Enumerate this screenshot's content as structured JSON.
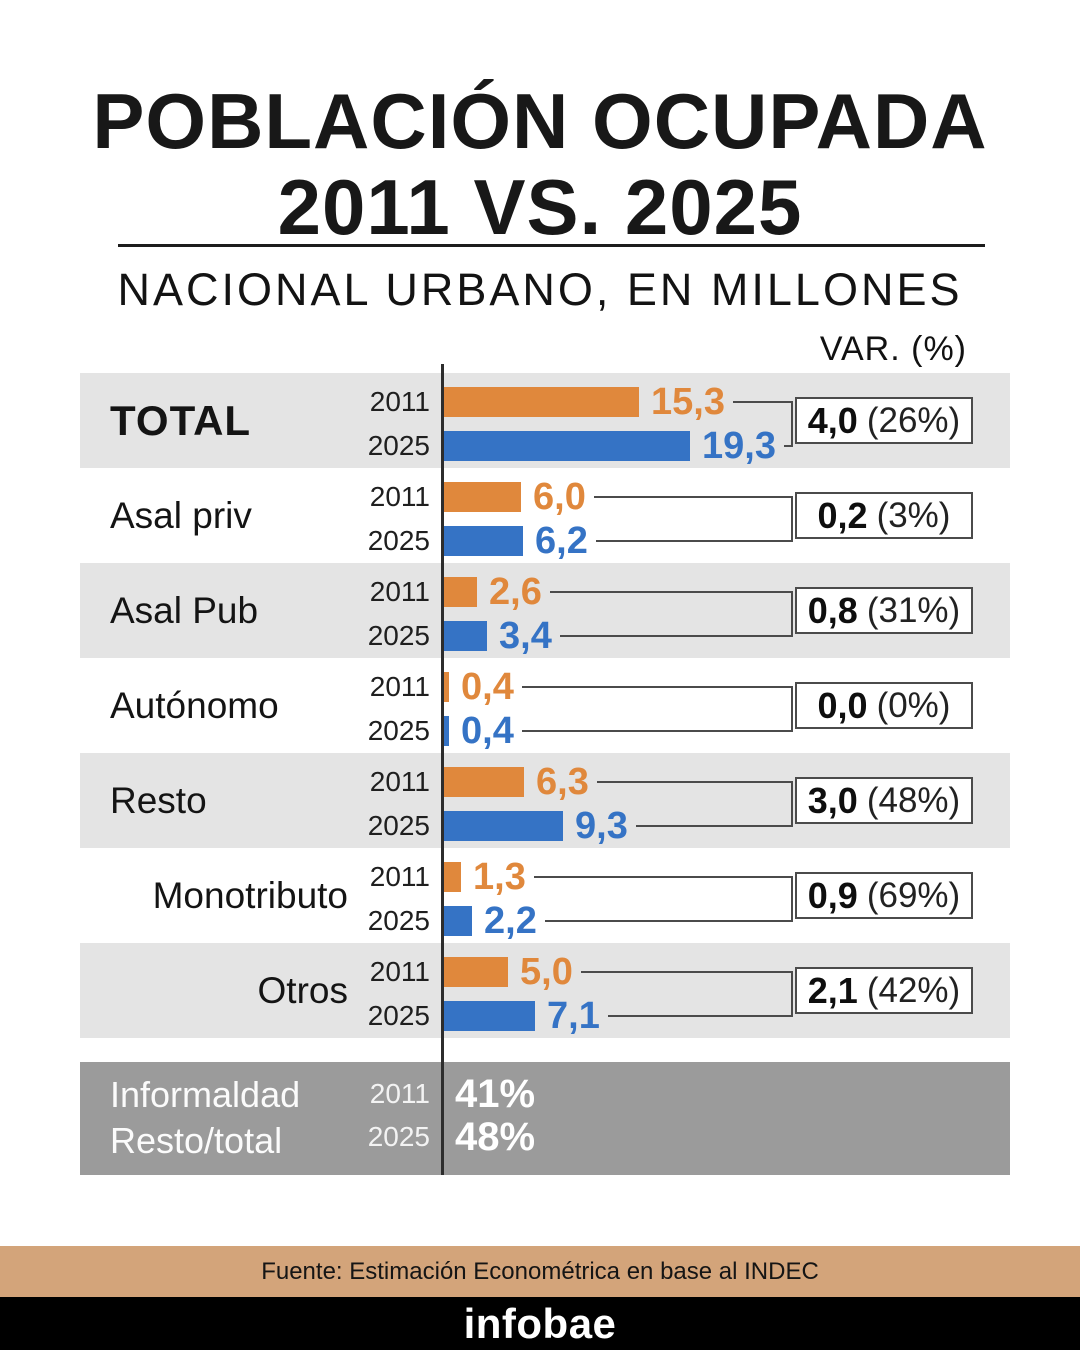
{
  "header": {
    "title_line1": "POBLACIÓN OCUPADA",
    "title_line2": "2011 VS. 2025",
    "subtitle": "NACIONAL URBANO, EN MILLONES",
    "var_header": "VAR. (%)"
  },
  "colors": {
    "year_2011": "#e0883c",
    "year_2025": "#3573c5",
    "row_shade": "#e4e4e4",
    "informality_band": "#9b9b9b",
    "source_band": "#d3a47a",
    "connector": "#4b4b4b"
  },
  "chart_data": {
    "type": "bar",
    "orientation": "horizontal",
    "title": "POBLACIÓN OCUPADA 2011 VS. 2025",
    "subtitle": "NACIONAL URBANO, EN MILLONES",
    "unit": "millones de personas",
    "years": [
      "2011",
      "2025"
    ],
    "xlim": [
      0,
      19.3
    ],
    "grid": false,
    "legend_position": "none",
    "rows": [
      {
        "label": "TOTAL",
        "shaded": true,
        "emphasis": true,
        "label_align": "left",
        "values": [
          15.3,
          19.3
        ],
        "value_labels": [
          "15,3",
          "19,3"
        ],
        "var_abs": 4.0,
        "var_abs_label": "4,0",
        "var_pct": 26,
        "var_pct_label": "(26%)"
      },
      {
        "label": "Asal priv",
        "shaded": false,
        "emphasis": false,
        "label_align": "left",
        "values": [
          6.0,
          6.2
        ],
        "value_labels": [
          "6,0",
          "6,2"
        ],
        "var_abs": 0.2,
        "var_abs_label": "0,2",
        "var_pct": 3,
        "var_pct_label": "(3%)"
      },
      {
        "label": "Asal Pub",
        "shaded": true,
        "emphasis": false,
        "label_align": "left",
        "values": [
          2.6,
          3.4
        ],
        "value_labels": [
          "2,6",
          "3,4"
        ],
        "var_abs": 0.8,
        "var_abs_label": "0,8",
        "var_pct": 31,
        "var_pct_label": "(31%)"
      },
      {
        "label": "Autónomo",
        "shaded": false,
        "emphasis": false,
        "label_align": "left",
        "values": [
          0.4,
          0.4
        ],
        "value_labels": [
          "0,4",
          "0,4"
        ],
        "var_abs": 0.0,
        "var_abs_label": "0,0",
        "var_pct": 0,
        "var_pct_label": "(0%)"
      },
      {
        "label": "Resto",
        "shaded": true,
        "emphasis": false,
        "label_align": "left",
        "values": [
          6.3,
          9.3
        ],
        "value_labels": [
          "6,3",
          "9,3"
        ],
        "var_abs": 3.0,
        "var_abs_label": "3,0",
        "var_pct": 48,
        "var_pct_label": "(48%)"
      },
      {
        "label": "Monotributo",
        "shaded": false,
        "emphasis": false,
        "label_align": "right",
        "values": [
          1.3,
          2.2
        ],
        "value_labels": [
          "1,3",
          "2,2"
        ],
        "var_abs": 0.9,
        "var_abs_label": "0,9",
        "var_pct": 69,
        "var_pct_label": "(69%)"
      },
      {
        "label": "Otros",
        "shaded": true,
        "emphasis": false,
        "label_align": "right",
        "values": [
          5.0,
          7.1
        ],
        "value_labels": [
          "5,0",
          "7,1"
        ],
        "var_abs": 2.1,
        "var_abs_label": "2,1",
        "var_pct": 42,
        "var_pct_label": "(42%)"
      }
    ],
    "informality": {
      "label_line1": "Informaldad",
      "label_line2": "Resto/total",
      "years": [
        "2011",
        "2025"
      ],
      "values": [
        "41%",
        "48%"
      ],
      "values_numeric": [
        41,
        48
      ]
    }
  },
  "footer": {
    "source": "Fuente: Estimación Econométrica en base al INDEC",
    "brand": "infobae"
  }
}
